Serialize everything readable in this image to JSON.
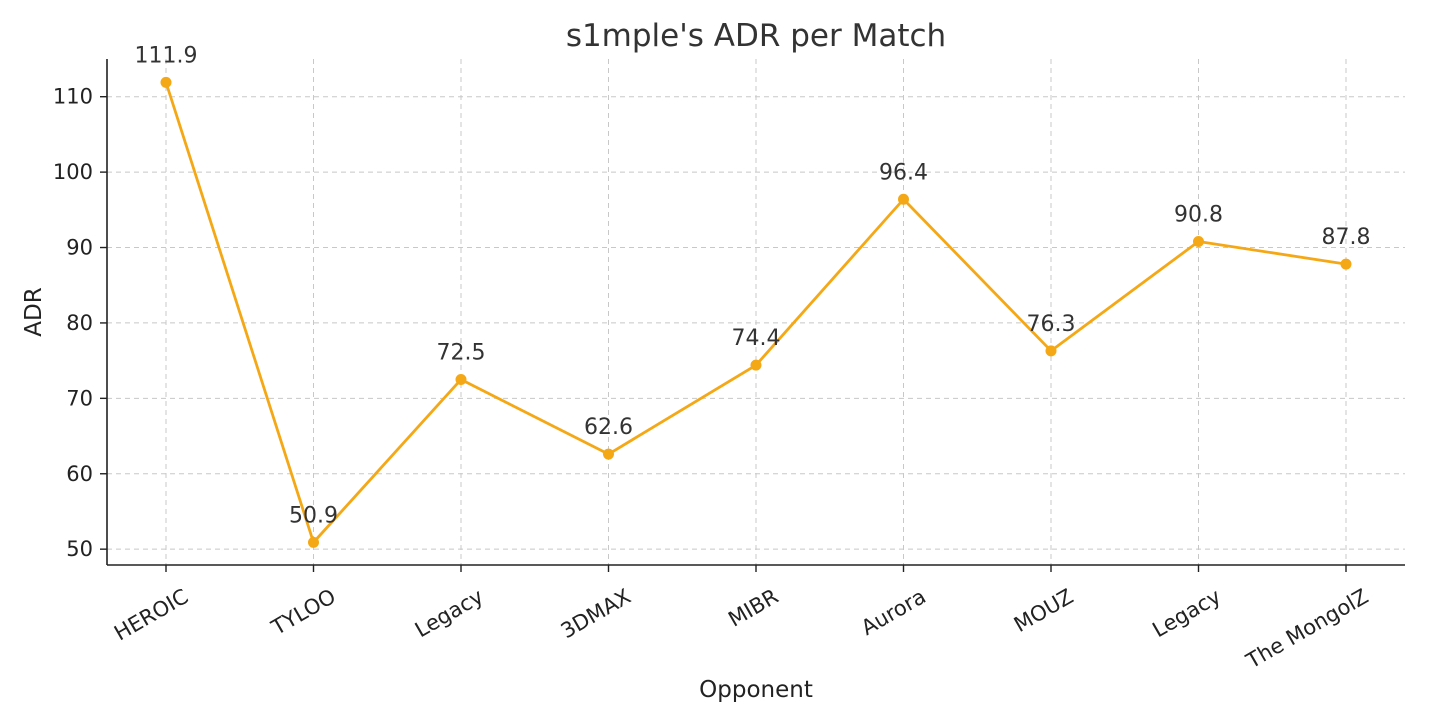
{
  "chart_data": {
    "type": "line",
    "title": "s1mple's ADR per Match",
    "xlabel": "Opponent",
    "ylabel": "ADR",
    "categories": [
      "HEROIC",
      "TYLOO",
      "Legacy",
      "3DMAX",
      "MIBR",
      "Aurora",
      "MOUZ",
      "Legacy",
      "The MongolZ"
    ],
    "values": [
      111.9,
      50.9,
      72.5,
      62.6,
      74.4,
      96.4,
      76.3,
      90.8,
      87.8
    ],
    "data_labels": [
      "111.9",
      "50.9",
      "72.5",
      "62.6",
      "74.4",
      "96.4",
      "76.3",
      "90.8",
      "87.8"
    ],
    "yticks": [
      50,
      60,
      70,
      80,
      90,
      100,
      110
    ],
    "ylim": [
      47.9,
      115.0
    ],
    "grid": true,
    "legend": "none",
    "color": "#f5a815"
  }
}
